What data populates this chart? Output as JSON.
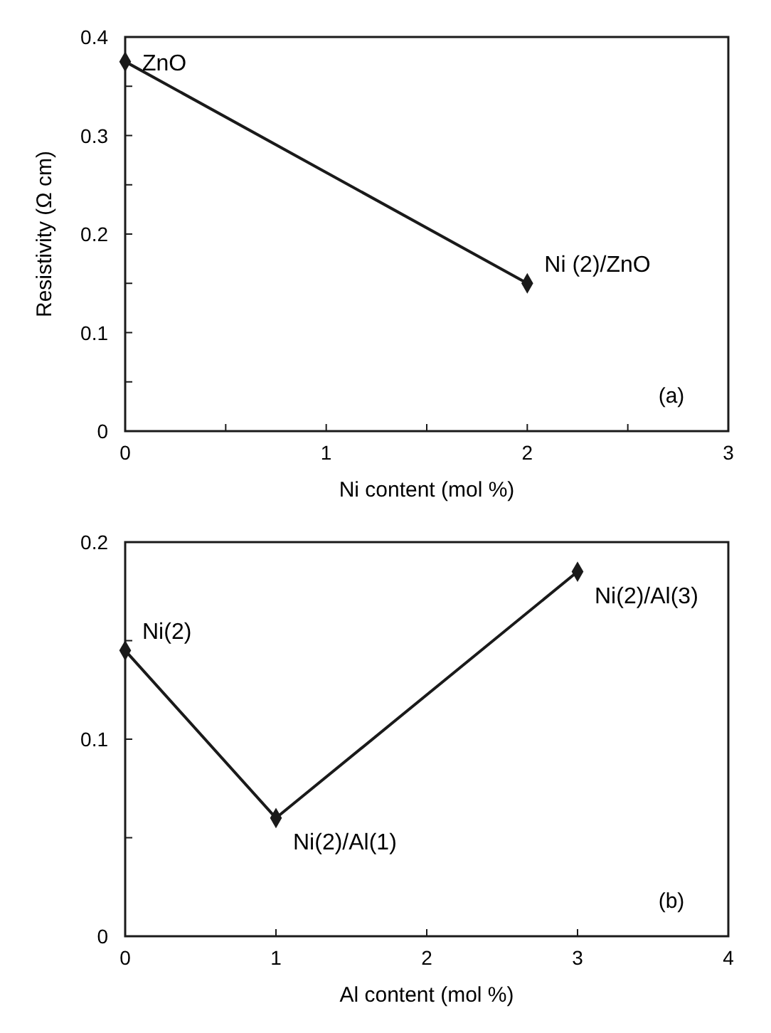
{
  "chart_data": [
    {
      "type": "line",
      "xlabel": "Ni content (mol %)",
      "ylabel": "Resistivity (Ω cm)",
      "x": [
        0,
        2
      ],
      "series": [
        {
          "color": "#1a1a1a",
          "values": [
            0.375,
            0.15
          ]
        }
      ],
      "xlim": [
        0,
        3
      ],
      "xticks": [
        0,
        {
          "value": 0.5,
          "label": null
        },
        1,
        {
          "value": 1.5,
          "label": null
        },
        2,
        {
          "value": 2.5,
          "label": null
        },
        3
      ],
      "ylim": [
        0,
        0.4
      ],
      "yticks": [
        0,
        {
          "value": 0.05,
          "label": null
        },
        0.1,
        {
          "value": 0.15,
          "label": null
        },
        0.2,
        {
          "value": 0.25,
          "label": null
        },
        0.3,
        {
          "value": 0.35,
          "label": null
        },
        0.4
      ],
      "marker": "diamond",
      "line_style": "solid",
      "grid": false,
      "annotations": [
        {
          "text": "ZnO",
          "x": 0,
          "y": 0.375
        },
        {
          "text": "Ni (2)/ZnO",
          "x": 2,
          "y": 0.15
        },
        "(a)"
      ]
    },
    {
      "type": "line",
      "xlabel": "Al content (mol %)",
      "x": [
        0,
        1,
        3
      ],
      "series": [
        {
          "color": "#1a1a1a",
          "values": [
            0.145,
            0.06,
            0.185
          ]
        }
      ],
      "xlim": [
        0,
        4
      ],
      "xticks": [
        0,
        1,
        2,
        3,
        4
      ],
      "ylim": [
        0,
        0.2
      ],
      "yticks": [
        0,
        {
          "value": 0.05,
          "label": null
        },
        0.1,
        {
          "value": 0.15,
          "label": null
        },
        0.2
      ],
      "marker": "diamond",
      "line_style": "solid",
      "grid": false,
      "annotations": [
        {
          "text": "Ni(2)",
          "x": 0,
          "y": 0.145
        },
        {
          "text": "Ni(2)/Al(1)",
          "x": 1,
          "y": 0.06
        },
        {
          "text": "Ni(2)/Al(3)",
          "x": 3,
          "y": 0.185
        },
        "(b)"
      ]
    }
  ]
}
